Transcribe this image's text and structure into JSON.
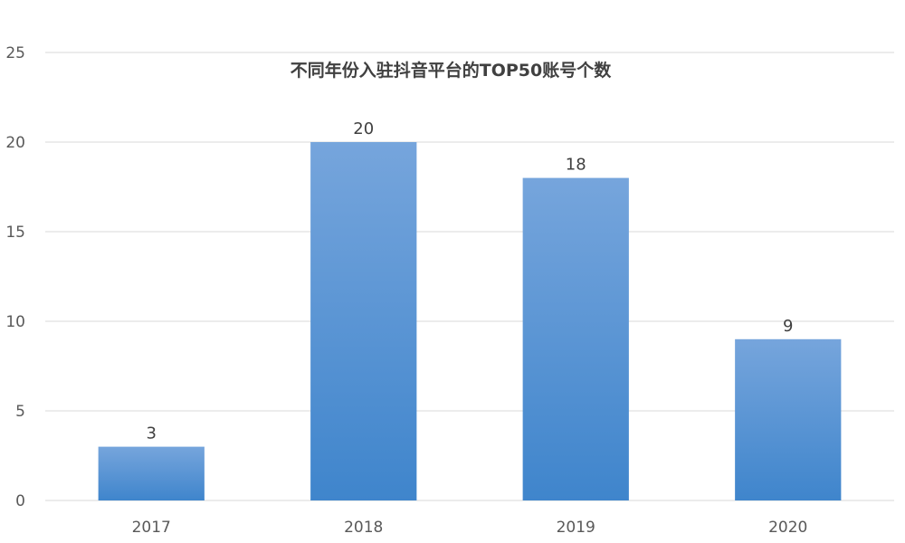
{
  "chart_data": {
    "type": "bar",
    "title": "不同年份入驻抖音平台的TOP50账号个数",
    "categories": [
      "2017",
      "2018",
      "2019",
      "2020"
    ],
    "values": [
      3,
      20,
      18,
      9
    ],
    "ylim": [
      0,
      25
    ],
    "yticks": [
      0,
      5,
      10,
      15,
      20,
      25
    ],
    "grid": true,
    "legend": "none",
    "colors": {
      "bar_top": "#76A5DC",
      "bar_bottom": "#3F85CC",
      "grid": "#D9D9D9"
    }
  }
}
